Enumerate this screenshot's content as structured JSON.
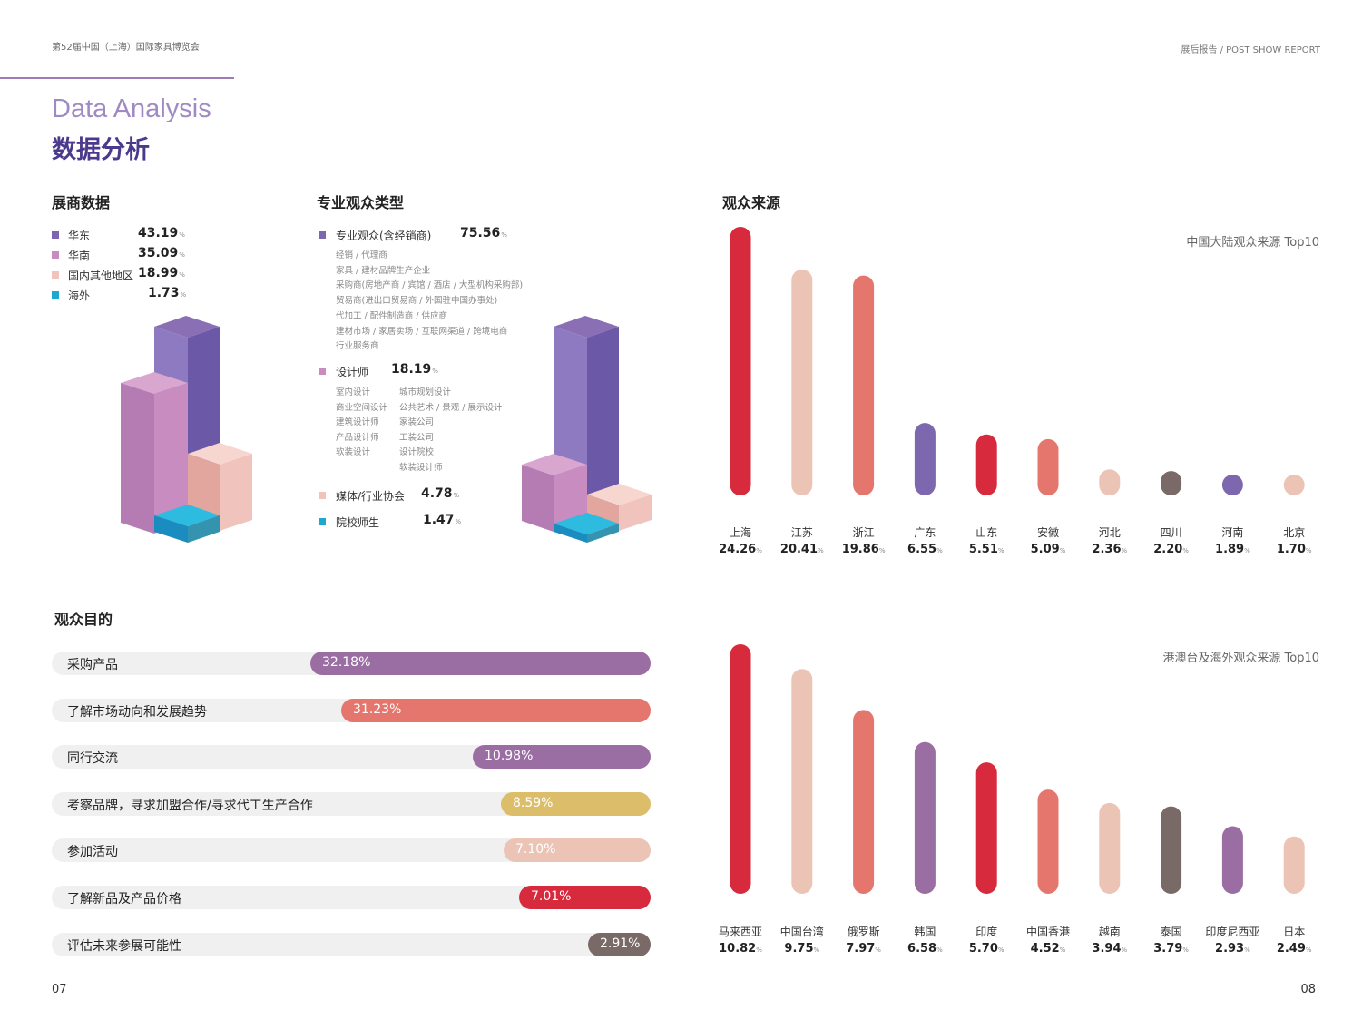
{
  "header": {
    "left": "第52届中国（上海）国际家具博览会",
    "right": "展后报告 / POST  SHOW REPORT"
  },
  "title": {
    "en": "Data Analysis",
    "cn": "数据分析"
  },
  "pages": {
    "left": "07",
    "right": "08"
  },
  "colors": {
    "purple": "#7d68b0",
    "pink": "#c98cc0",
    "lightpink": "#f0c4bc",
    "cyan": "#1fa8cf",
    "red": "#d72a3c",
    "salmon": "#e5766d",
    "peach": "#ecc4b6",
    "mauve": "#9b6ea3",
    "brown": "#7a6a67",
    "gold": "#dcbe6a"
  },
  "exhibitor": {
    "title": "展商数据",
    "items": [
      {
        "label": "华东",
        "value": "43.19",
        "unit": "%",
        "color": "#7d68b0"
      },
      {
        "label": "华南",
        "value": "35.09",
        "unit": "%",
        "color": "#c98cc0"
      },
      {
        "label": "国内其他地区",
        "value": "18.99",
        "unit": "%",
        "color": "#f0c4bc"
      },
      {
        "label": "海外",
        "value": "1.73",
        "unit": "%",
        "color": "#1fa8cf"
      }
    ]
  },
  "audience_type": {
    "title": "专业观众类型",
    "items": [
      {
        "label": "专业观众(含经销商)",
        "value": "75.56",
        "unit": "%",
        "color": "#7d68b0",
        "subs": [
          "经销 / 代理商",
          "家具 / 建材品牌生产企业",
          "采购商(房地产商 / 宾馆 / 酒店 / 大型机构采购部)",
          "贸易商(进出口贸易商 / 外国驻中国办事处)",
          "代加工 / 配件制造商 / 供应商",
          "建材市场 / 家居卖场 / 互联网渠道 / 跨境电商",
          "行业服务商"
        ]
      },
      {
        "label": "设计师",
        "value": "18.19",
        "unit": "%",
        "color": "#c98cc0",
        "subs_a": [
          "室内设计",
          "商业空间设计",
          "建筑设计师",
          "产品设计师",
          "软装设计"
        ],
        "subs_b": [
          "城市规划设计",
          "公共艺术 / 景观 / 展示设计",
          "家装公司",
          "工装公司",
          "设计院校",
          "软装设计师"
        ]
      },
      {
        "label": "媒体/行业协会",
        "value": "4.78",
        "unit": "%",
        "color": "#f0c4bc"
      },
      {
        "label": "院校师生",
        "value": "1.47",
        "unit": "%",
        "color": "#1fa8cf"
      }
    ]
  },
  "purpose": {
    "title": "观众目的",
    "items": [
      {
        "label": "采购产品",
        "value": 32.18,
        "text": "32.18%",
        "color": "#9b6ea3"
      },
      {
        "label": "了解市场动向和发展趋势",
        "value": 31.23,
        "text": "31.23%",
        "color": "#e5766d"
      },
      {
        "label": "同行交流",
        "value": 10.98,
        "text": "10.98%",
        "color": "#9b6ea3"
      },
      {
        "label": "考察品牌，寻求加盟合作/寻求代工生产合作",
        "value": 8.59,
        "text": "8.59%",
        "color": "#dcbe6a"
      },
      {
        "label": "参加活动",
        "value": 7.1,
        "text": "7.10%",
        "color": "#ecc4b6"
      },
      {
        "label": "了解新品及产品价格",
        "value": 7.01,
        "text": "7.01%",
        "color": "#d72a3c"
      },
      {
        "label": "评估未来参展可能性",
        "value": 2.91,
        "text": "2.91%",
        "color": "#7a6a67"
      }
    ]
  },
  "source": {
    "title": "观众来源"
  },
  "chart_data": [
    {
      "type": "bar",
      "title": "中国大陆观众来源 Top10",
      "categories": [
        "上海",
        "江苏",
        "浙江",
        "广东",
        "山东",
        "安徽",
        "河北",
        "四川",
        "河南",
        "北京"
      ],
      "values": [
        24.26,
        20.41,
        19.86,
        6.55,
        5.51,
        5.09,
        2.36,
        2.2,
        1.89,
        1.7
      ],
      "labels": [
        "24.26",
        "20.41",
        "19.86",
        "6.55",
        "5.51",
        "5.09",
        "2.36",
        "2.20",
        "1.89",
        "1.70"
      ],
      "colors": [
        "#d72a3c",
        "#ecc4b6",
        "#e5766d",
        "#7d68b0",
        "#d72a3c",
        "#e5766d",
        "#ecc4b6",
        "#7a6a67",
        "#7d68b0",
        "#ecc4b6"
      ],
      "unit": "%"
    },
    {
      "type": "bar",
      "title": "港澳台及海外观众来源 Top10",
      "categories": [
        "马来西亚",
        "中国台湾",
        "俄罗斯",
        "韩国",
        "印度",
        "中国香港",
        "越南",
        "泰国",
        "印度尼西亚",
        "日本"
      ],
      "values": [
        10.82,
        9.75,
        7.97,
        6.58,
        5.7,
        4.52,
        3.94,
        3.79,
        2.93,
        2.49
      ],
      "labels": [
        "10.82",
        "9.75",
        "7.97",
        "6.58",
        "5.70",
        "4.52",
        "3.94",
        "3.79",
        "2.93",
        "2.49"
      ],
      "colors": [
        "#d72a3c",
        "#ecc4b6",
        "#e5766d",
        "#9b6ea3",
        "#d72a3c",
        "#e5766d",
        "#ecc4b6",
        "#7a6a67",
        "#9b6ea3",
        "#ecc4b6"
      ],
      "unit": "%"
    }
  ]
}
